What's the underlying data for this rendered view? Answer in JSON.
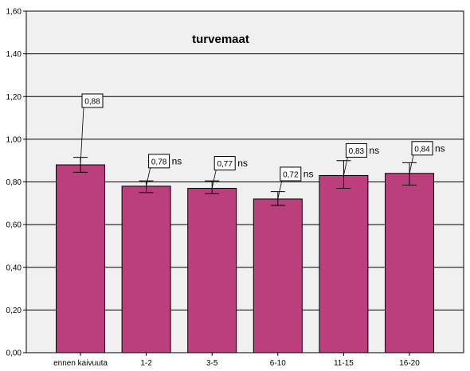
{
  "chart_data": {
    "type": "bar",
    "title": "turvemaat",
    "xlabel": "",
    "ylabel": "",
    "categories": [
      "ennen kaivuuta",
      "1-2",
      "3-5",
      "6-10",
      "11-15",
      "16-20"
    ],
    "values": [
      0.88,
      0.78,
      0.77,
      0.72,
      0.83,
      0.84
    ],
    "value_labels": [
      "0,88",
      "0,78",
      "0,77",
      "0,72",
      "0,83",
      "0,84"
    ],
    "error_low": [
      0.845,
      0.75,
      0.745,
      0.69,
      0.77,
      0.785
    ],
    "error_high": [
      0.915,
      0.805,
      0.805,
      0.755,
      0.9,
      0.89
    ],
    "significance": [
      "",
      "ns",
      "ns",
      "ns",
      "ns",
      "ns"
    ],
    "ylim": [
      0,
      1.6
    ],
    "yticks": [
      0,
      0.2,
      0.4,
      0.6,
      0.8,
      1.0,
      1.2,
      1.4,
      1.6
    ],
    "ytick_labels": [
      "0,00",
      "0,20",
      "0,40",
      "0,60",
      "0,80",
      "1,00",
      "1,20",
      "1,40",
      "1,60"
    ],
    "grid": "horizontal",
    "bar_color": "#bb3e7d",
    "plot_background": "#f0f0f0"
  }
}
